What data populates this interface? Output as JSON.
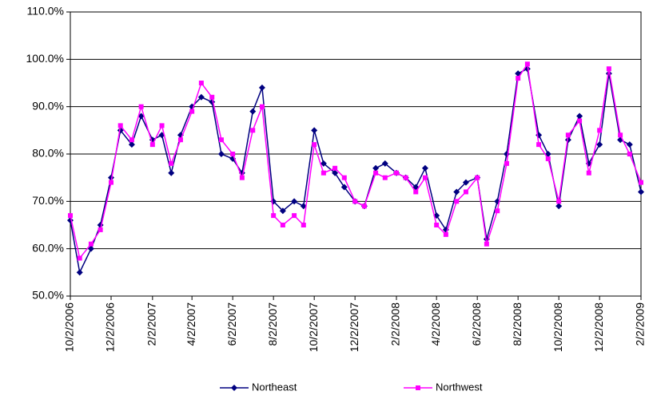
{
  "chart_data": {
    "type": "line",
    "x": [
      "10/2/2006",
      "10/16/2006",
      "11/2/2006",
      "11/16/2006",
      "12/2/2006",
      "12/16/2006",
      "1/2/2007",
      "1/16/2007",
      "2/2/2007",
      "2/16/2007",
      "3/2/2007",
      "3/16/2007",
      "4/2/2007",
      "4/16/2007",
      "5/2/2007",
      "5/16/2007",
      "6/2/2007",
      "6/16/2007",
      "7/2/2007",
      "7/16/2007",
      "8/2/2007",
      "8/16/2007",
      "9/2/2007",
      "9/16/2007",
      "10/2/2007",
      "10/16/2007",
      "11/2/2007",
      "11/16/2007",
      "12/2/2007",
      "12/16/2007",
      "1/2/2008",
      "1/16/2008",
      "2/2/2008",
      "2/16/2008",
      "3/2/2008",
      "3/16/2008",
      "4/2/2008",
      "4/16/2008",
      "5/2/2008",
      "5/16/2008",
      "6/2/2008",
      "6/16/2008",
      "7/2/2008",
      "7/16/2008",
      "8/2/2008",
      "8/16/2008",
      "9/2/2008",
      "9/16/2008",
      "10/2/2008",
      "10/16/2008",
      "11/2/2008",
      "11/16/2008",
      "12/2/2008",
      "12/16/2008",
      "1/2/2009",
      "1/16/2009",
      "2/2/2009"
    ],
    "series": [
      {
        "name": "Northeast",
        "color": "#000080",
        "marker": "diamond",
        "values": [
          66,
          55,
          60,
          65,
          75,
          85,
          82,
          88,
          83,
          84,
          76,
          84,
          90,
          92,
          91,
          80,
          79,
          76,
          89,
          94,
          70,
          68,
          70,
          69,
          85,
          78,
          76,
          73,
          70,
          69,
          77,
          78,
          76,
          75,
          73,
          77,
          67,
          64,
          72,
          74,
          75,
          62,
          70,
          80,
          97,
          98,
          84,
          80,
          69,
          83,
          88,
          78,
          82,
          97,
          83,
          82,
          72
        ]
      },
      {
        "name": "Northwest",
        "color": "#ff00ff",
        "marker": "square",
        "values": [
          67,
          58,
          61,
          64,
          74,
          86,
          83,
          90,
          82,
          86,
          78,
          83,
          89,
          95,
          92,
          83,
          80,
          75,
          85,
          90,
          67,
          65,
          67,
          65,
          82,
          76,
          77,
          75,
          70,
          69,
          76,
          75,
          76,
          75,
          72,
          75,
          65,
          63,
          70,
          72,
          75,
          61,
          68,
          78,
          96,
          99,
          82,
          79,
          70,
          84,
          87,
          76,
          85,
          98,
          84,
          80,
          74
        ]
      }
    ],
    "xlim": [
      "10/2/2006",
      "2/2/2009"
    ],
    "xticks": [
      "10/2/2006",
      "12/2/2006",
      "2/2/2007",
      "4/2/2007",
      "6/2/2007",
      "8/2/2007",
      "10/2/2007",
      "12/2/2007",
      "2/2/2008",
      "4/2/2008",
      "6/2/2008",
      "8/2/2008",
      "10/2/2008",
      "12/2/2008",
      "2/2/2009"
    ],
    "ylim": [
      50,
      110
    ],
    "yticks": [
      {
        "value": 50,
        "label": "50.0%"
      },
      {
        "value": 60,
        "label": "60.0%"
      },
      {
        "value": 70,
        "label": "70.0%"
      },
      {
        "value": 80,
        "label": "80.0%"
      },
      {
        "value": 90,
        "label": "90.0%"
      },
      {
        "value": 100,
        "label": "100.0%"
      },
      {
        "value": 110,
        "label": "110.0%"
      }
    ],
    "grid": true,
    "legend": "bottom"
  }
}
